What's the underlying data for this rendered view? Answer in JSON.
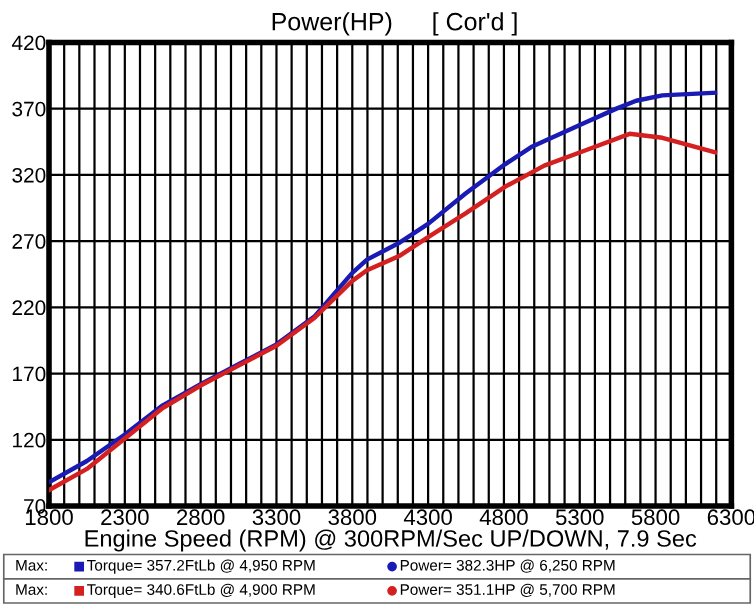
{
  "chart_data": {
    "type": "line",
    "title": "Power(HP)",
    "subtitle": "[ Cor'd ]",
    "xlabel": "Engine Speed (RPM) @ 300RPM/Sec UP/DOWN, 7.9 Sec",
    "series": [
      {
        "color": "#1a1ab4",
        "x": [
          1800,
          2050,
          2300,
          2550,
          2800,
          3050,
          3300,
          3550,
          3800,
          3897,
          4114,
          4300,
          4547,
          4807,
          4980,
          5326,
          5542,
          5672,
          5845,
          6192
        ],
        "values": [
          88,
          104,
          124,
          146,
          162,
          177,
          192,
          213,
          246,
          256,
          269,
          283,
          306,
          328,
          341,
          359,
          370,
          376,
          380,
          382
        ]
      },
      {
        "color": "#d42020",
        "x": [
          1800,
          2050,
          2300,
          2550,
          2800,
          3050,
          3300,
          3550,
          3800,
          3897,
          4114,
          4300,
          4547,
          4807,
          5066,
          5326,
          5629,
          5845,
          6192
        ],
        "values": [
          82,
          98,
          121,
          144,
          161,
          176,
          191,
          212,
          240,
          248,
          259,
          273,
          291,
          311,
          327,
          338,
          351,
          348,
          337
        ]
      }
    ],
    "xlim": [
      1800,
      6300
    ],
    "ylim": [
      70,
      420
    ],
    "xticks": [
      1800,
      {
        "value": 1900,
        "label": null
      },
      {
        "value": 2000,
        "label": null
      },
      {
        "value": 2100,
        "label": null
      },
      {
        "value": 2200,
        "label": null
      },
      2300,
      {
        "value": 2400,
        "label": null
      },
      {
        "value": 2500,
        "label": null
      },
      {
        "value": 2600,
        "label": null
      },
      {
        "value": 2700,
        "label": null
      },
      2800,
      {
        "value": 2900,
        "label": null
      },
      {
        "value": 3000,
        "label": null
      },
      {
        "value": 3100,
        "label": null
      },
      {
        "value": 3200,
        "label": null
      },
      3300,
      {
        "value": 3400,
        "label": null
      },
      {
        "value": 3500,
        "label": null
      },
      {
        "value": 3600,
        "label": null
      },
      {
        "value": 3700,
        "label": null
      },
      3800,
      {
        "value": 3900,
        "label": null
      },
      {
        "value": 4000,
        "label": null
      },
      {
        "value": 4100,
        "label": null
      },
      {
        "value": 4200,
        "label": null
      },
      4300,
      {
        "value": 4400,
        "label": null
      },
      {
        "value": 4500,
        "label": null
      },
      {
        "value": 4600,
        "label": null
      },
      {
        "value": 4700,
        "label": null
      },
      4800,
      {
        "value": 4900,
        "label": null
      },
      {
        "value": 5000,
        "label": null
      },
      {
        "value": 5100,
        "label": null
      },
      {
        "value": 5200,
        "label": null
      },
      5300,
      {
        "value": 5400,
        "label": null
      },
      {
        "value": 5500,
        "label": null
      },
      {
        "value": 5600,
        "label": null
      },
      {
        "value": 5700,
        "label": null
      },
      5800,
      {
        "value": 5900,
        "label": null
      },
      {
        "value": 6000,
        "label": null
      },
      {
        "value": 6100,
        "label": null
      },
      {
        "value": 6200,
        "label": null
      },
      6300
    ],
    "yticks": [
      70,
      120,
      170,
      220,
      270,
      320,
      370,
      420
    ],
    "grid": true,
    "marker": "none",
    "line_style": "solid",
    "annotations": [
      "Max:",
      "Torque= 357.2FtLb @ 4,950 RPM",
      "Power= 382.3HP @ 6,250 RPM",
      "Max:",
      "Torque= 340.6FtLb @ 4,900 RPM",
      "Power= 351.1HP @ 5,700 RPM"
    ]
  }
}
